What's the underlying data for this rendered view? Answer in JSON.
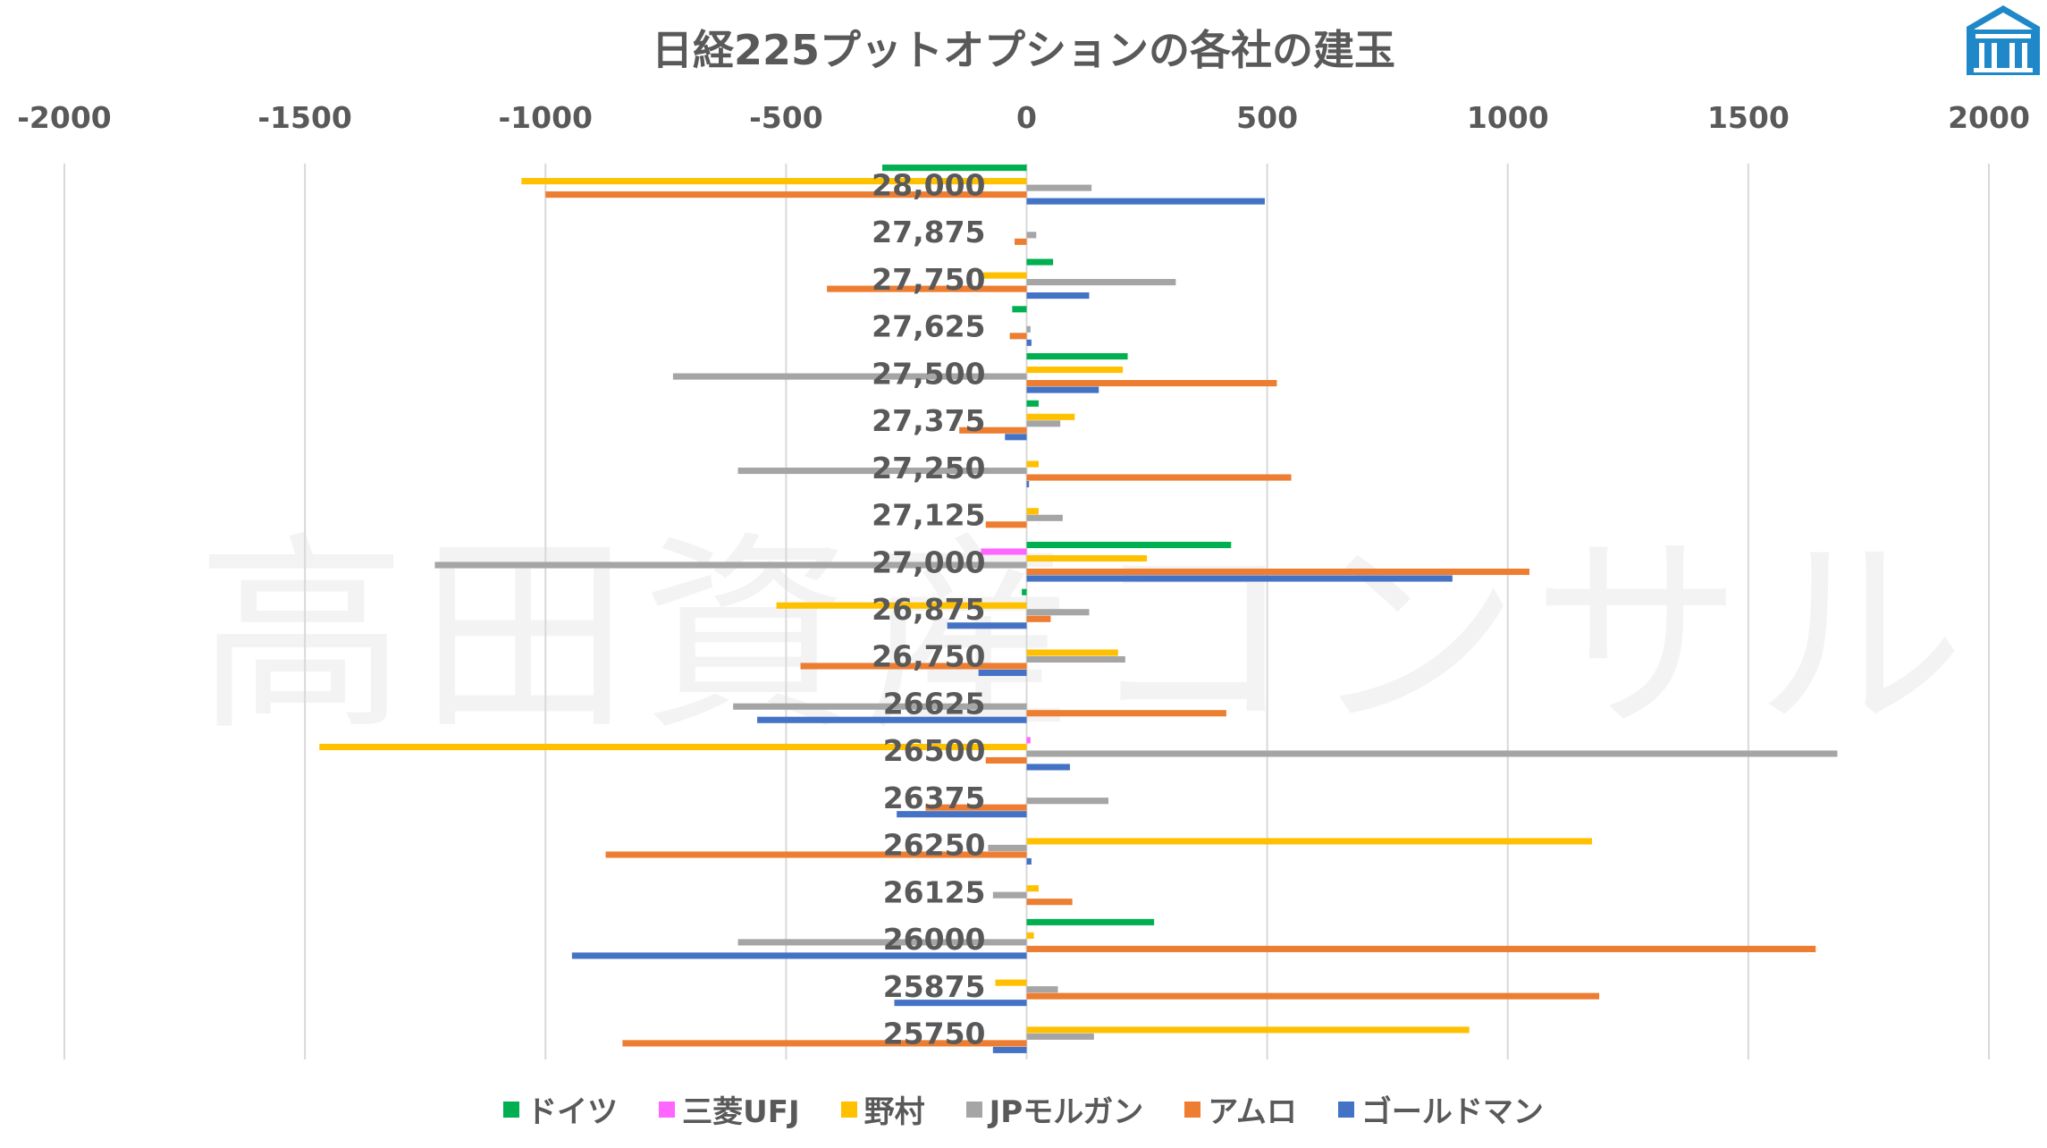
{
  "chart_data": {
    "type": "bar",
    "orientation": "horizontal",
    "title": "日経225プットオプションの各社の建玉",
    "xlim": [
      -2000,
      2000
    ],
    "x_ticks": [
      "-2000",
      "-1500",
      "-1000",
      "-500",
      "0",
      "500",
      "1000",
      "1500",
      "2000"
    ],
    "x_axis_position": "top",
    "gridlines": true,
    "legend_position": "bottom",
    "categories": [
      "28,000",
      "27,875",
      "27,750",
      "27,625",
      "27,500",
      "27,375",
      "27,250",
      "27,125",
      "27,000",
      "26,875",
      "26,750",
      "26625",
      "26500",
      "26375",
      "26250",
      "26125",
      "26000",
      "25875",
      "25750"
    ],
    "series": [
      {
        "name": "ドイツ",
        "color": "#00B050",
        "values": [
          -300,
          0,
          55,
          -30,
          210,
          25,
          0,
          0,
          425,
          -10,
          0,
          0,
          0,
          0,
          0,
          0,
          265,
          0,
          0
        ]
      },
      {
        "name": "三菱UFJ",
        "color": "#FF66FF",
        "values": [
          0,
          0,
          0,
          0,
          0,
          0,
          0,
          0,
          -95,
          0,
          0,
          0,
          8,
          0,
          0,
          0,
          0,
          0,
          0
        ]
      },
      {
        "name": "野村",
        "color": "#FFC000",
        "values": [
          -1050,
          0,
          -90,
          0,
          200,
          100,
          25,
          25,
          250,
          -520,
          190,
          0,
          -1470,
          0,
          1175,
          25,
          15,
          -65,
          920
        ]
      },
      {
        "name": "JPモルガン",
        "color": "#A5A5A5",
        "values": [
          135,
          20,
          310,
          8,
          -735,
          70,
          -600,
          75,
          -1230,
          130,
          205,
          -610,
          1685,
          170,
          -80,
          -70,
          -600,
          65,
          140
        ]
      },
      {
        "name": "アムロ",
        "color": "#ED7D31",
        "values": [
          -1000,
          -25,
          -415,
          -35,
          520,
          -140,
          550,
          -85,
          1045,
          50,
          -470,
          415,
          -85,
          -210,
          -875,
          95,
          1640,
          1190,
          -840
        ]
      },
      {
        "name": "ゴールドマン",
        "color": "#4472C4",
        "values": [
          495,
          0,
          130,
          10,
          150,
          -45,
          5,
          0,
          885,
          -165,
          -100,
          -560,
          90,
          -270,
          10,
          0,
          -945,
          -275,
          -70
        ]
      }
    ]
  },
  "watermark": "高田資産コンサル",
  "logo_icon": "building-logo-icon"
}
